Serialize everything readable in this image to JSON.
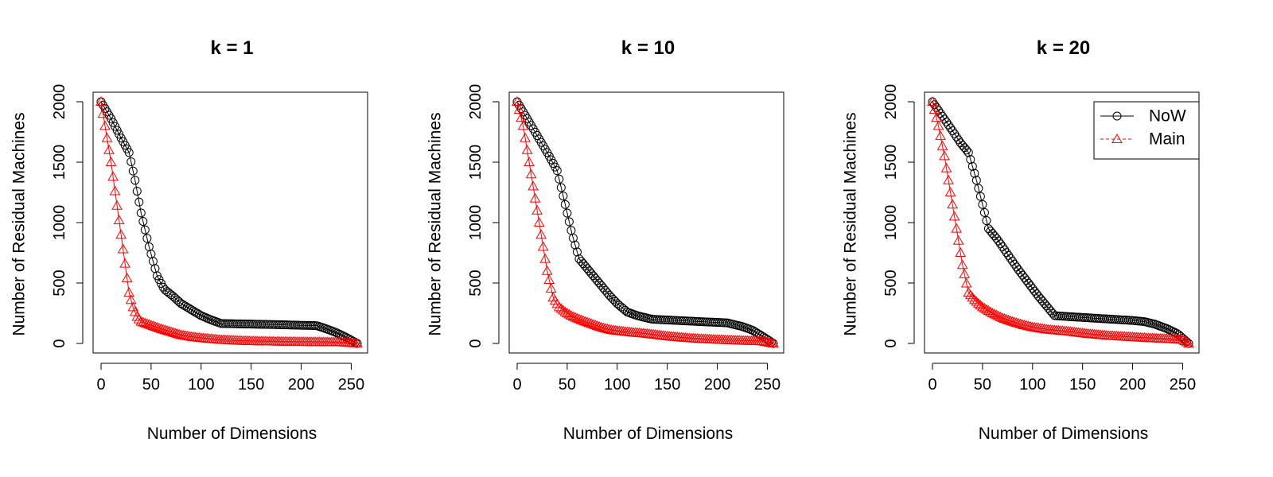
{
  "chart_data": [
    {
      "type": "line",
      "title": "k = 1",
      "xlabel": "Number of Dimensions",
      "ylabel": "Number of Residual Machines",
      "xlim": [
        0,
        256
      ],
      "ylim": [
        0,
        2000
      ],
      "xticks": [
        "0",
        "50",
        "100",
        "150",
        "200",
        "250"
      ],
      "yticks": [
        "0",
        "500",
        "1000",
        "1500",
        "2000"
      ],
      "legend": null,
      "series": [
        {
          "name": "NoW",
          "color": "#000000",
          "marker": "circle",
          "points": [
            [
              0,
              2000
            ],
            [
              10,
              1860
            ],
            [
              20,
              1700
            ],
            [
              28,
              1580
            ],
            [
              34,
              1350
            ],
            [
              40,
              1080
            ],
            [
              48,
              800
            ],
            [
              56,
              560
            ],
            [
              63,
              450
            ],
            [
              72,
              390
            ],
            [
              80,
              330
            ],
            [
              90,
              280
            ],
            [
              100,
              230
            ],
            [
              110,
              195
            ],
            [
              120,
              165
            ],
            [
              150,
              160
            ],
            [
              180,
              155
            ],
            [
              200,
              150
            ],
            [
              215,
              148
            ],
            [
              222,
              130
            ],
            [
              235,
              90
            ],
            [
              245,
              50
            ],
            [
              256,
              0
            ]
          ]
        },
        {
          "name": "Main",
          "color": "#ff0000",
          "marker": "triangle",
          "points": [
            [
              0,
              2000
            ],
            [
              5,
              1750
            ],
            [
              10,
              1500
            ],
            [
              15,
              1200
            ],
            [
              20,
              900
            ],
            [
              25,
              600
            ],
            [
              28,
              420
            ],
            [
              32,
              300
            ],
            [
              36,
              220
            ],
            [
              40,
              180
            ],
            [
              50,
              150
            ],
            [
              60,
              120
            ],
            [
              70,
              95
            ],
            [
              80,
              70
            ],
            [
              90,
              55
            ],
            [
              100,
              45
            ],
            [
              120,
              30
            ],
            [
              140,
              22
            ],
            [
              160,
              18
            ],
            [
              180,
              15
            ],
            [
              200,
              13
            ],
            [
              220,
              12
            ],
            [
              240,
              10
            ],
            [
              256,
              0
            ]
          ]
        }
      ]
    },
    {
      "type": "line",
      "title": "k = 10",
      "xlabel": "Number of Dimensions",
      "ylabel": "Number of Residual Machines",
      "xlim": [
        0,
        256
      ],
      "ylim": [
        0,
        2000
      ],
      "xticks": [
        "0",
        "50",
        "100",
        "150",
        "200",
        "250"
      ],
      "yticks": [
        "0",
        "500",
        "1000",
        "1500",
        "2000"
      ],
      "legend": null,
      "series": [
        {
          "name": "NoW",
          "color": "#000000",
          "marker": "circle",
          "points": [
            [
              0,
              2000
            ],
            [
              10,
              1860
            ],
            [
              20,
              1720
            ],
            [
              30,
              1580
            ],
            [
              40,
              1430
            ],
            [
              48,
              1150
            ],
            [
              55,
              900
            ],
            [
              62,
              700
            ],
            [
              72,
              600
            ],
            [
              82,
              500
            ],
            [
              92,
              400
            ],
            [
              100,
              330
            ],
            [
              110,
              260
            ],
            [
              120,
              230
            ],
            [
              135,
              200
            ],
            [
              160,
              190
            ],
            [
              185,
              180
            ],
            [
              210,
              170
            ],
            [
              225,
              140
            ],
            [
              235,
              110
            ],
            [
              245,
              60
            ],
            [
              256,
              0
            ]
          ]
        },
        {
          "name": "Main",
          "color": "#ff0000",
          "marker": "triangle",
          "points": [
            [
              0,
              2000
            ],
            [
              6,
              1800
            ],
            [
              12,
              1500
            ],
            [
              18,
              1200
            ],
            [
              24,
              900
            ],
            [
              30,
              600
            ],
            [
              36,
              380
            ],
            [
              42,
              300
            ],
            [
              48,
              260
            ],
            [
              55,
              225
            ],
            [
              65,
              190
            ],
            [
              75,
              160
            ],
            [
              85,
              130
            ],
            [
              95,
              110
            ],
            [
              110,
              95
            ],
            [
              130,
              80
            ],
            [
              150,
              60
            ],
            [
              170,
              45
            ],
            [
              190,
              35
            ],
            [
              210,
              28
            ],
            [
              230,
              22
            ],
            [
              245,
              18
            ],
            [
              256,
              0
            ]
          ]
        }
      ]
    },
    {
      "type": "line",
      "title": "k = 20",
      "xlabel": "Number of Dimensions",
      "ylabel": "Number of Residual Machines",
      "xlim": [
        0,
        256
      ],
      "ylim": [
        0,
        2000
      ],
      "xticks": [
        "0",
        "50",
        "100",
        "150",
        "200",
        "250"
      ],
      "yticks": [
        "0",
        "500",
        "1000",
        "1500",
        "2000"
      ],
      "legend": {
        "position": "top-right",
        "entries": [
          "NoW",
          "Main"
        ]
      },
      "series": [
        {
          "name": "NoW",
          "color": "#000000",
          "marker": "circle",
          "points": [
            [
              0,
              2000
            ],
            [
              10,
              1880
            ],
            [
              20,
              1760
            ],
            [
              28,
              1660
            ],
            [
              36,
              1580
            ],
            [
              44,
              1350
            ],
            [
              50,
              1150
            ],
            [
              56,
              950
            ],
            [
              65,
              860
            ],
            [
              75,
              740
            ],
            [
              85,
              620
            ],
            [
              95,
              510
            ],
            [
              105,
              400
            ],
            [
              115,
              300
            ],
            [
              122,
              230
            ],
            [
              140,
              220
            ],
            [
              160,
              210
            ],
            [
              180,
              200
            ],
            [
              200,
              190
            ],
            [
              212,
              180
            ],
            [
              222,
              160
            ],
            [
              235,
              120
            ],
            [
              245,
              80
            ],
            [
              256,
              0
            ]
          ]
        },
        {
          "name": "Main",
          "color": "#ff0000",
          "marker": "triangle",
          "points": [
            [
              0,
              2000
            ],
            [
              6,
              1800
            ],
            [
              12,
              1550
            ],
            [
              18,
              1250
            ],
            [
              24,
              950
            ],
            [
              30,
              650
            ],
            [
              36,
              420
            ],
            [
              42,
              360
            ],
            [
              50,
              300
            ],
            [
              60,
              250
            ],
            [
              70,
              210
            ],
            [
              80,
              180
            ],
            [
              90,
              155
            ],
            [
              100,
              135
            ],
            [
              115,
              115
            ],
            [
              135,
              100
            ],
            [
              155,
              80
            ],
            [
              175,
              65
            ],
            [
              195,
              55
            ],
            [
              215,
              45
            ],
            [
              235,
              38
            ],
            [
              250,
              30
            ],
            [
              256,
              0
            ]
          ]
        }
      ]
    }
  ]
}
